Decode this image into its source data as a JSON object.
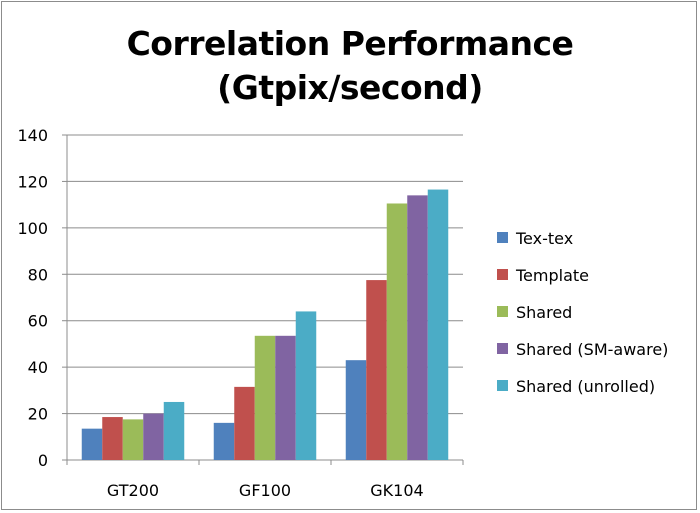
{
  "chart_data": {
    "type": "bar",
    "title_line1": "Correlation Performance",
    "title_line2": "(Gtpix/second)",
    "categories": [
      "GT200",
      "GF100",
      "GK104"
    ],
    "series": [
      {
        "name": "Tex-tex",
        "color": "#4f81bd",
        "values": [
          13.5,
          16,
          43
        ]
      },
      {
        "name": "Template",
        "color": "#c0504d",
        "values": [
          18.5,
          31.5,
          77.5
        ]
      },
      {
        "name": "Shared",
        "color": "#9bbb59",
        "values": [
          17.5,
          53.5,
          110.5
        ]
      },
      {
        "name": "Shared (SM-aware)",
        "color": "#8064a2",
        "values": [
          20,
          53.5,
          114
        ]
      },
      {
        "name": "Shared (unrolled)",
        "color": "#4bacc6",
        "values": [
          25,
          64,
          116.5
        ]
      }
    ],
    "ylim": [
      0,
      140
    ],
    "yticks": [
      0,
      20,
      40,
      60,
      80,
      100,
      120,
      140
    ],
    "grid": true,
    "legend_position": "right"
  }
}
